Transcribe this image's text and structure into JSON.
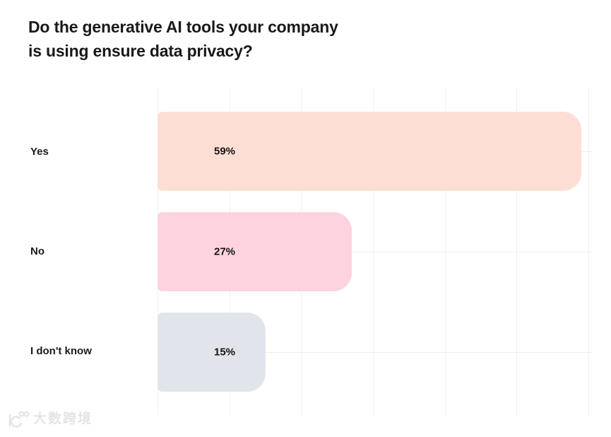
{
  "title": {
    "lines": [
      "Do the generative AI tools your company",
      "is using ensure data privacy?"
    ]
  },
  "chart_data": {
    "type": "bar",
    "orientation": "horizontal",
    "title": "Do the generative AI tools your company is using ensure data privacy?",
    "categories": [
      "Yes",
      "No",
      "I don't know"
    ],
    "values": [
      59,
      27,
      15
    ],
    "value_labels": [
      "59%",
      "27%",
      "15%"
    ],
    "unit": "%",
    "bar_colors": [
      "#FDDED5",
      "#FCD3DE",
      "#E2E4EB"
    ],
    "xlim": [
      0,
      60
    ],
    "gridline_step": 10,
    "grid": true,
    "legend": false,
    "value_label_color": "#141414",
    "gridline_color": "#f0f0f0"
  },
  "watermark": {
    "logo_icon": "dashu-100-smiley-logo",
    "text": "大数跨境"
  },
  "colors": {
    "background": "#ffffff",
    "title_text": "#191919",
    "category_text": "#1b1b1b"
  }
}
